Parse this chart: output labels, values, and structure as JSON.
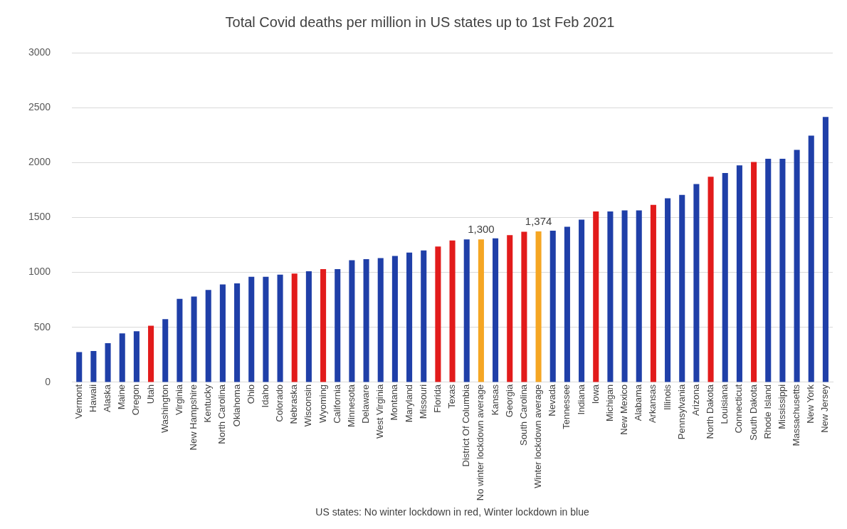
{
  "chart_data": {
    "type": "bar",
    "title": "Total Covid deaths per million in US states up to 1st Feb 2021",
    "xlabel": "US states: No winter lockdown in red, Winter lockdown in blue",
    "categories": [
      "Vermont",
      "Hawaii",
      "Alaska",
      "Maine",
      "Oregon",
      "Utah",
      "Washington",
      "Virginia",
      "New Hampshire",
      "Kentucky",
      "North Carolina",
      "Oklahoma",
      "Ohio",
      "Idaho",
      "Colorado",
      "Nebraska",
      "Wisconsin",
      "Wyoming",
      "California",
      "Minnesota",
      "Delaware",
      "West Virginia",
      "Montana",
      "Maryland",
      "Missouri",
      "Florida",
      "Texas",
      "District Of Columbia",
      "No winter lockdown average",
      "Kansas",
      "Georgia",
      "South Carolina",
      "Winter lockdown average",
      "Nevada",
      "Tennessee",
      "Indiana",
      "Iowa",
      "Michigan",
      "New Mexico",
      "Alabama",
      "Arkansas",
      "Illinois",
      "Pennsylvania",
      "Arizona",
      "North Dakota",
      "Louisiana",
      "Connecticut",
      "South Dakota",
      "Rhode Island",
      "Mississippi",
      "Massachusetts",
      "New York",
      "New Jersey"
    ],
    "values": [
      275,
      285,
      355,
      445,
      465,
      515,
      575,
      760,
      780,
      840,
      890,
      900,
      960,
      960,
      980,
      990,
      1010,
      1030,
      1030,
      1110,
      1120,
      1130,
      1150,
      1180,
      1200,
      1235,
      1290,
      1300,
      1300,
      1310,
      1340,
      1370,
      1374,
      1380,
      1415,
      1480,
      1555,
      1555,
      1565,
      1565,
      1615,
      1675,
      1705,
      1805,
      1870,
      1905,
      1975,
      2005,
      2035,
      2035,
      2115,
      2245,
      2415
    ],
    "colors": [
      "#1f3fa8",
      "#1f3fa8",
      "#1f3fa8",
      "#1f3fa8",
      "#1f3fa8",
      "#e21b1b",
      "#1f3fa8",
      "#1f3fa8",
      "#1f3fa8",
      "#1f3fa8",
      "#1f3fa8",
      "#1f3fa8",
      "#1f3fa8",
      "#1f3fa8",
      "#1f3fa8",
      "#e21b1b",
      "#1f3fa8",
      "#e21b1b",
      "#1f3fa8",
      "#1f3fa8",
      "#1f3fa8",
      "#1f3fa8",
      "#1f3fa8",
      "#1f3fa8",
      "#1f3fa8",
      "#e21b1b",
      "#e21b1b",
      "#1f3fa8",
      "#f5a623",
      "#1f3fa8",
      "#e21b1b",
      "#e21b1b",
      "#f5a623",
      "#1f3fa8",
      "#1f3fa8",
      "#1f3fa8",
      "#e21b1b",
      "#1f3fa8",
      "#1f3fa8",
      "#1f3fa8",
      "#e21b1b",
      "#1f3fa8",
      "#1f3fa8",
      "#1f3fa8",
      "#e21b1b",
      "#1f3fa8",
      "#1f3fa8",
      "#e21b1b",
      "#1f3fa8",
      "#1f3fa8",
      "#1f3fa8",
      "#1f3fa8",
      "#1f3fa8"
    ],
    "value_labels": [
      null,
      null,
      null,
      null,
      null,
      null,
      null,
      null,
      null,
      null,
      null,
      null,
      null,
      null,
      null,
      null,
      null,
      null,
      null,
      null,
      null,
      null,
      null,
      null,
      null,
      null,
      null,
      null,
      "1,300",
      null,
      null,
      null,
      "1,374",
      null,
      null,
      null,
      null,
      null,
      null,
      null,
      null,
      null,
      null,
      null,
      null,
      null,
      null,
      null,
      null,
      null,
      null,
      null,
      null
    ],
    "ylim": [
      0,
      3000
    ],
    "yticks": [
      0,
      500,
      1000,
      1500,
      2000,
      2500,
      3000
    ],
    "grid": "y",
    "legend": false
  }
}
